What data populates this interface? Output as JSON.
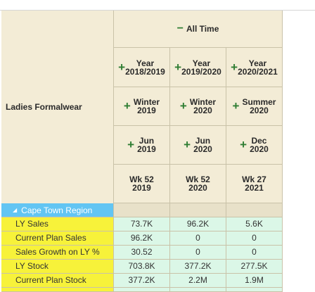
{
  "row_header": {
    "label": "Ladies Formalwear"
  },
  "column_header": {
    "top": "All Time",
    "years": [
      "Year 2018/2019",
      "Year 2019/2020",
      "Year 2020/2021"
    ],
    "seasons": [
      "Winter 2019",
      "Winter 2020",
      "Summer 2020"
    ],
    "months": [
      "Jun 2019",
      "Jun 2020",
      "Dec 2020"
    ],
    "weeks": [
      "Wk 52 2019",
      "Wk 52 2020",
      "Wk 27 2021"
    ]
  },
  "region": {
    "label": "Cape Town Region"
  },
  "measures": [
    {
      "label": "LY Sales",
      "values": [
        "73.7K",
        "96.2K",
        "5.6K"
      ]
    },
    {
      "label": "Current Plan Sales",
      "values": [
        "96.2K",
        "0",
        "0"
      ]
    },
    {
      "label": "Sales Growth on LY %",
      "values": [
        "30.52",
        "0",
        "0"
      ]
    },
    {
      "label": "LY Stock",
      "values": [
        "703.8K",
        "377.2K",
        "277.5K"
      ]
    },
    {
      "label": "Current Plan Stock",
      "values": [
        "377.2K",
        "2.2M",
        "1.9M"
      ]
    }
  ],
  "icons": {
    "expand": "plus-icon",
    "collapse": "minus-icon",
    "tree_toggle": "triangle-down-icon"
  },
  "colors": {
    "header_bg": "#f3ecd6",
    "region_bg": "#62c5f3",
    "measure_bg": "#f7f23a",
    "cell_bg": "#dbf7e7",
    "icon_green": "#2e7d32"
  }
}
